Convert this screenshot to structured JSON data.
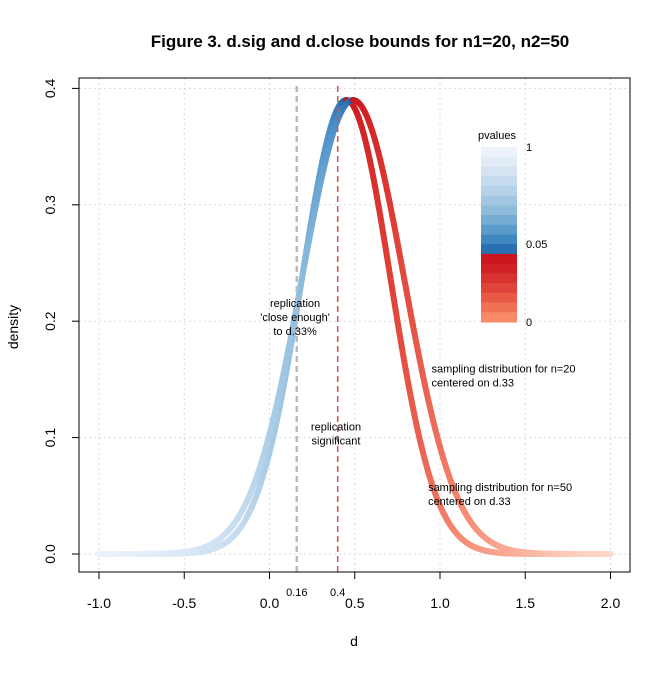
{
  "chart_data": {
    "type": "line",
    "title": "Figure 3. d.sig and d.close bounds for n1=20, n2=50",
    "xlabel": "d",
    "ylabel": "density",
    "xlim": [
      -1.0,
      2.0
    ],
    "ylim": [
      0.0,
      0.4
    ],
    "x_ticks": [
      "-1.0",
      "-0.5",
      "0.0",
      "0.5",
      "1.0",
      "1.5",
      "2.0"
    ],
    "y_ticks": [
      "0.0",
      "0.1",
      "0.2",
      "0.3",
      "0.4"
    ],
    "grid": true,
    "series": [
      {
        "name": "sampling distribution for n=20 centered on d.33",
        "center": 0.49,
        "sd": 0.3,
        "peak_density": 0.39
      },
      {
        "name": "sampling distribution for n=50 centered on d.33",
        "center": 0.49,
        "sd": 0.3,
        "peak_density": 0.39
      }
    ],
    "vlines": [
      {
        "x": 0.16,
        "label": "0.16",
        "color": "#bbbbbb",
        "style": "dashed"
      },
      {
        "x": 0.4,
        "label": "0.4",
        "color": "#e8484a",
        "style": "dashed"
      }
    ],
    "annotations": [
      {
        "text_lines": [
          "replication",
          "'close enough'",
          "to d.33%"
        ],
        "x": 0.15,
        "y": 0.2
      },
      {
        "text_lines": [
          "replication",
          "significant"
        ],
        "x": 0.39,
        "y": 0.1
      },
      {
        "text_lines": [
          "sampling distribution for n=20",
          "centered on d.33"
        ],
        "x": 0.95,
        "y": 0.15
      },
      {
        "text_lines": [
          "sampling distribution for n=50",
          "centered on d.33"
        ],
        "x": 0.93,
        "y": 0.048
      }
    ],
    "legend": {
      "title": "pvalues",
      "placement": "top-right",
      "labels": [
        "1",
        "0.05",
        "0"
      ],
      "colors_top_to_bottom": [
        "#eef3fb",
        "#e2ecf7",
        "#d6e4f2",
        "#c6dbef",
        "#b5d2e8",
        "#a3c7e2",
        "#8fbcdb",
        "#74acd3",
        "#5a9ccb",
        "#3f87c0",
        "#2a6fb0",
        "#c9161f",
        "#d02226",
        "#d83330",
        "#e0443a",
        "#e85a46",
        "#f17156",
        "#f88a68"
      ]
    }
  }
}
